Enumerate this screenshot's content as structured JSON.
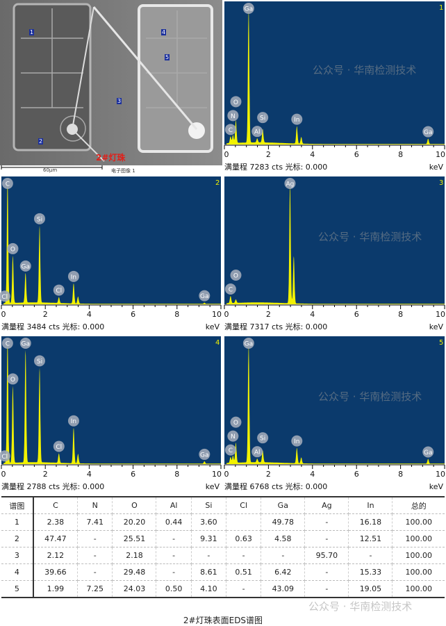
{
  "sem": {
    "label_led": "2#灯珠",
    "scale": "60μm",
    "image_name": "电子图像 1",
    "markers": [
      "1",
      "2",
      "3",
      "4",
      "5"
    ]
  },
  "colors": {
    "plot_bg": "#0b3a6c",
    "spectrum": "#f2f200",
    "label_bubble": "#9fa9b8",
    "marker": "#1a2f9c",
    "led_label": "#e0201a"
  },
  "axis": {
    "ticks": [
      "0",
      "2",
      "4",
      "6",
      "8",
      "10"
    ],
    "unit": "keV"
  },
  "watermark": "公众号 · 华南检测技术",
  "spectra": [
    {
      "id": "1",
      "footer": "满量程 7283 cts 光标: 0.000",
      "peaks": [
        [
          0.28,
          0.05
        ],
        [
          0.39,
          0.06
        ],
        [
          0.52,
          0.17
        ],
        [
          1.1,
          1.0
        ],
        [
          1.49,
          0.03
        ],
        [
          1.74,
          0.1
        ],
        [
          3.29,
          0.13
        ],
        [
          3.49,
          0.05
        ],
        [
          9.25,
          0.04
        ]
      ],
      "labels": [
        [
          "C",
          0.28
        ],
        [
          "N",
          0.39
        ],
        [
          "O",
          0.52
        ],
        [
          "Ga",
          1.1
        ],
        [
          "Al",
          1.49
        ],
        [
          "Si",
          1.74
        ],
        [
          "In",
          3.29
        ],
        [
          "Ga",
          9.25
        ]
      ]
    },
    {
      "id": "2",
      "footer": "满量程 3484 cts 光标: 0.000",
      "peaks": [
        [
          0.28,
          1.05
        ],
        [
          0.52,
          0.4
        ],
        [
          1.1,
          0.25
        ],
        [
          1.74,
          0.65
        ],
        [
          2.62,
          0.05
        ],
        [
          3.29,
          0.17
        ],
        [
          3.49,
          0.06
        ],
        [
          9.25,
          0.01
        ]
      ],
      "labels": [
        [
          "Cl",
          0.15
        ],
        [
          "C",
          0.28
        ],
        [
          "O",
          0.52
        ],
        [
          "Ga",
          1.1
        ],
        [
          "Si",
          1.74
        ],
        [
          "Cl",
          2.62
        ],
        [
          "In",
          3.29
        ],
        [
          "Ga",
          9.25
        ]
      ]
    },
    {
      "id": "3",
      "footer": "满量程 7317 cts 光标: 0.000",
      "peaks": [
        [
          0.28,
          0.06
        ],
        [
          0.52,
          0.03
        ],
        [
          2.98,
          1.0
        ],
        [
          3.15,
          0.4
        ]
      ],
      "labels": [
        [
          "C",
          0.28
        ],
        [
          "O",
          0.52
        ],
        [
          "Ag",
          2.98
        ]
      ]
    },
    {
      "id": "4",
      "footer": "满量程 2788 cts 光标: 0.000",
      "peaks": [
        [
          0.28,
          1.05
        ],
        [
          0.52,
          0.65
        ],
        [
          1.1,
          0.95
        ],
        [
          1.74,
          0.8
        ],
        [
          2.62,
          0.08
        ],
        [
          3.29,
          0.3
        ],
        [
          3.49,
          0.08
        ],
        [
          9.25,
          0.02
        ]
      ],
      "labels": [
        [
          "Cl",
          0.15
        ],
        [
          "C",
          0.28
        ],
        [
          "O",
          0.52
        ],
        [
          "Ga",
          1.1
        ],
        [
          "Si",
          1.74
        ],
        [
          "Cl",
          2.62
        ],
        [
          "In",
          3.29
        ],
        [
          "Ga",
          9.25
        ]
      ]
    },
    {
      "id": "5",
      "footer": "满量程 6768 cts 光标: 0.000",
      "peaks": [
        [
          0.28,
          0.05
        ],
        [
          0.39,
          0.06
        ],
        [
          0.52,
          0.17
        ],
        [
          1.1,
          1.0
        ],
        [
          1.49,
          0.03
        ],
        [
          1.74,
          0.1
        ],
        [
          3.29,
          0.13
        ],
        [
          3.49,
          0.05
        ],
        [
          9.25,
          0.04
        ]
      ],
      "labels": [
        [
          "C",
          0.28
        ],
        [
          "N",
          0.39
        ],
        [
          "O",
          0.52
        ],
        [
          "Ga",
          1.1
        ],
        [
          "Al",
          1.49
        ],
        [
          "Si",
          1.74
        ],
        [
          "In",
          3.29
        ],
        [
          "Ga",
          9.25
        ]
      ]
    }
  ],
  "table": {
    "headers": [
      "谱图",
      "C",
      "N",
      "O",
      "Al",
      "Si",
      "Cl",
      "Ga",
      "Ag",
      "In",
      "总的"
    ],
    "rows": [
      [
        "1",
        "2.38",
        "7.41",
        "20.20",
        "0.44",
        "3.60",
        "",
        "49.78",
        "-",
        "16.18",
        "100.00"
      ],
      [
        "2",
        "47.47",
        "-",
        "25.51",
        "-",
        "9.31",
        "0.63",
        "4.58",
        "-",
        "12.51",
        "100.00"
      ],
      [
        "3",
        "2.12",
        "-",
        "2.18",
        "-",
        "-",
        "-",
        "-",
        "95.70",
        "-",
        "100.00"
      ],
      [
        "4",
        "39.66",
        "-",
        "29.48",
        "-",
        "8.61",
        "0.51",
        "6.42",
        "-",
        "15.33",
        "100.00"
      ],
      [
        "5",
        "1.99",
        "7.25",
        "24.03",
        "0.50",
        "4.10",
        "-",
        "43.09",
        "-",
        "19.05",
        "100.00"
      ]
    ]
  },
  "caption": "2#灯珠表面EDS谱图"
}
